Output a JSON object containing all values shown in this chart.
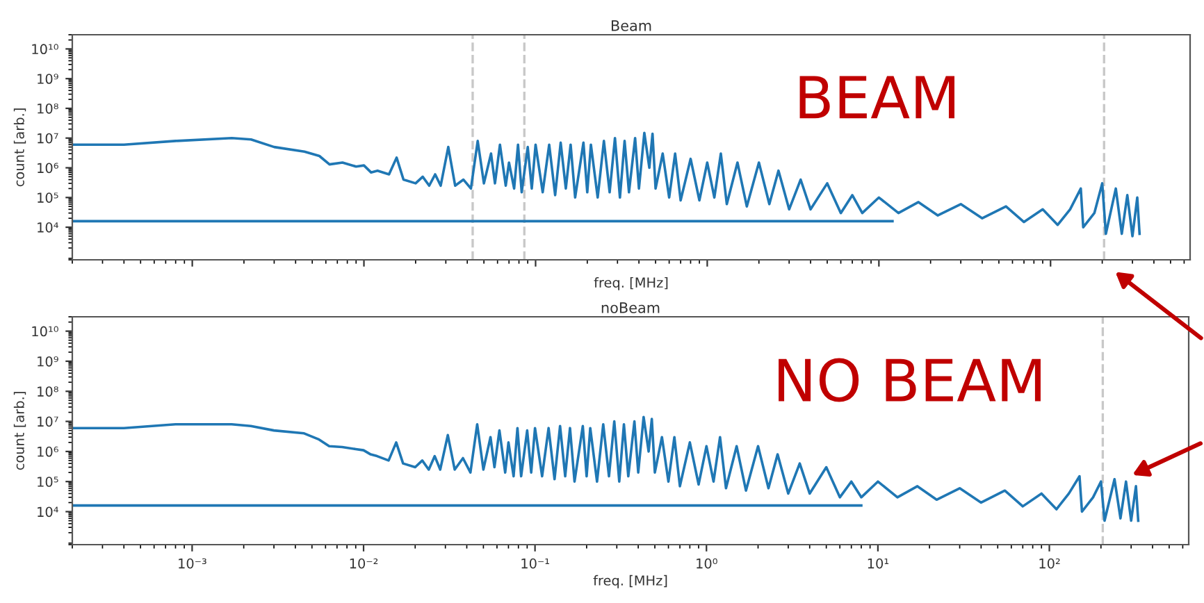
{
  "chart_data": [
    {
      "type": "line",
      "title": "Beam",
      "xlabel": "freq. [MHz]",
      "ylabel": "count [arb.]",
      "log": "xy",
      "tick_labels": "y",
      "annotations": [
        "BEAM"
      ],
      "xlim": [
        0.0002,
        650
      ],
      "ylim": [
        800,
        30000000000
      ],
      "xticks": [
        {
          "value": 0.001,
          "label": null
        },
        {
          "value": 0.01,
          "label": null
        },
        {
          "value": 0.1,
          "label": null
        },
        {
          "value": 1,
          "label": null
        },
        {
          "value": 10,
          "label": null
        },
        {
          "value": 100,
          "label": null
        }
      ],
      "yticks": [
        {
          "value": 10000,
          "label": "10⁴"
        },
        {
          "value": 100000,
          "label": "10⁵"
        },
        {
          "value": 1000000,
          "label": "10⁶"
        },
        {
          "value": 10000000,
          "label": "10⁷"
        },
        {
          "value": 100000000,
          "label": "10⁸"
        },
        {
          "value": 1000000000,
          "label": "10⁹"
        },
        {
          "value": 10000000000,
          "label": "10¹⁰"
        }
      ],
      "ref_lines": [
        {
          "axis": "x",
          "value": 0.043,
          "color": "#c8c8c8",
          "line_style": "dashed"
        },
        {
          "axis": "x",
          "value": 0.086,
          "color": "#c8c8c8",
          "line_style": "dashed"
        },
        {
          "axis": "x",
          "value": 205,
          "color": "#c8c8c8",
          "line_style": "dashed"
        }
      ],
      "series": [
        {
          "color": "#1f77b4",
          "x": [
            0.0002,
            12
          ],
          "values": [
            16000,
            16000
          ]
        },
        {
          "color": "#1f77b4",
          "x": [
            0.0002,
            0.0004,
            0.0008,
            0.0017,
            0.0022,
            0.003,
            0.0045,
            0.0055,
            0.0063,
            0.0075,
            0.009,
            0.01,
            0.011,
            0.012,
            0.014,
            0.0155,
            0.017,
            0.02,
            0.022,
            0.024,
            0.026,
            0.028,
            0.031,
            0.034,
            0.038,
            0.042,
            0.046,
            0.05,
            0.055,
            0.058,
            0.062,
            0.067,
            0.07,
            0.075,
            0.079,
            0.083,
            0.09,
            0.095,
            0.1,
            0.11,
            0.12,
            0.13,
            0.14,
            0.15,
            0.16,
            0.17,
            0.19,
            0.2,
            0.21,
            0.23,
            0.25,
            0.27,
            0.29,
            0.31,
            0.33,
            0.35,
            0.38,
            0.4,
            0.43,
            0.46,
            0.48,
            0.5,
            0.55,
            0.6,
            0.65,
            0.7,
            0.8,
            0.9,
            1.0,
            1.1,
            1.2,
            1.3,
            1.5,
            1.7,
            2.0,
            2.3,
            2.6,
            3.0,
            3.5,
            4.0,
            5.0,
            6.0,
            7.0,
            8.0,
            10,
            13,
            17,
            22,
            30,
            40,
            55,
            70,
            90,
            110,
            130,
            150,
            155,
            180,
            200,
            210,
            240,
            260,
            280,
            300,
            320,
            330
          ],
          "values": [
            6000000,
            6000000,
            8000000,
            10000000,
            9000000,
            5000000,
            3500000,
            2500000,
            1300000,
            1500000,
            1100000,
            1200000,
            700000,
            800000,
            600000,
            2200000,
            400000,
            300000,
            500000,
            250000,
            600000,
            250000,
            5000000,
            250000,
            400000,
            200000,
            8000000,
            300000,
            3000000,
            300000,
            6000000,
            250000,
            1500000,
            200000,
            6000000,
            150000,
            5000000,
            200000,
            6000000,
            150000,
            6000000,
            120000,
            7000000,
            200000,
            6000000,
            100000,
            7000000,
            150000,
            6000000,
            100000,
            8000000,
            150000,
            10000000,
            100000,
            8000000,
            150000,
            10000000,
            200000,
            15000000,
            1000000,
            14000000,
            200000,
            3000000,
            100000,
            3000000,
            80000,
            2000000,
            80000,
            1500000,
            100000,
            3000000,
            60000,
            1500000,
            50000,
            1500000,
            60000,
            800000,
            40000,
            400000,
            40000,
            300000,
            30000,
            120000,
            30000,
            100000,
            30000,
            70000,
            25000,
            60000,
            20000,
            50000,
            15000,
            40000,
            12000,
            40000,
            200000,
            10000,
            30000,
            300000,
            6000,
            200000,
            6000,
            120000,
            5000,
            100000,
            6000
          ]
        }
      ]
    },
    {
      "type": "line",
      "title": "noBeam",
      "xlabel": "freq. [MHz]",
      "ylabel": "count [arb.]",
      "log": "xy",
      "annotations": [
        "NO BEAM"
      ],
      "xlim": [
        0.0002,
        650
      ],
      "ylim": [
        800,
        30000000000
      ],
      "xticks": [
        {
          "value": 0.001,
          "label": "10⁻³"
        },
        {
          "value": 0.01,
          "label": "10⁻²"
        },
        {
          "value": 0.1,
          "label": "10⁻¹"
        },
        {
          "value": 1,
          "label": "10⁰"
        },
        {
          "value": 10,
          "label": "10¹"
        },
        {
          "value": 100,
          "label": "10²"
        }
      ],
      "yticks": [
        {
          "value": 10000,
          "label": "10⁴"
        },
        {
          "value": 100000,
          "label": "10⁵"
        },
        {
          "value": 1000000,
          "label": "10⁶"
        },
        {
          "value": 10000000,
          "label": "10⁷"
        },
        {
          "value": 100000000,
          "label": "10⁸"
        },
        {
          "value": 1000000000,
          "label": "10⁹"
        },
        {
          "value": 10000000000,
          "label": "10¹⁰"
        }
      ],
      "ref_lines": [
        {
          "axis": "x",
          "value": 205,
          "color": "#c8c8c8",
          "line_style": "dashed"
        }
      ],
      "series": [
        {
          "color": "#1f77b4",
          "x": [
            0.0002,
            8
          ],
          "values": [
            16000,
            16000
          ]
        },
        {
          "color": "#1f77b4",
          "x": [
            0.0002,
            0.0004,
            0.0008,
            0.0017,
            0.0022,
            0.003,
            0.0045,
            0.0055,
            0.0063,
            0.0075,
            0.009,
            0.01,
            0.011,
            0.012,
            0.014,
            0.0155,
            0.017,
            0.02,
            0.022,
            0.024,
            0.026,
            0.028,
            0.031,
            0.034,
            0.038,
            0.042,
            0.046,
            0.05,
            0.055,
            0.058,
            0.062,
            0.067,
            0.07,
            0.075,
            0.079,
            0.083,
            0.09,
            0.095,
            0.1,
            0.11,
            0.12,
            0.13,
            0.14,
            0.15,
            0.16,
            0.17,
            0.19,
            0.2,
            0.21,
            0.23,
            0.25,
            0.27,
            0.29,
            0.31,
            0.33,
            0.35,
            0.38,
            0.4,
            0.43,
            0.46,
            0.48,
            0.5,
            0.55,
            0.6,
            0.65,
            0.7,
            0.8,
            0.9,
            1.0,
            1.1,
            1.2,
            1.3,
            1.5,
            1.7,
            2.0,
            2.3,
            2.6,
            3.0,
            3.5,
            4.0,
            5.0,
            6.0,
            7.0,
            8.0,
            10,
            13,
            17,
            22,
            30,
            40,
            55,
            70,
            90,
            110,
            130,
            150,
            155,
            180,
            200,
            210,
            240,
            260,
            280,
            300,
            320,
            330
          ],
          "values": [
            6000000,
            6000000,
            8000000,
            8000000,
            7000000,
            5000000,
            4000000,
            2500000,
            1500000,
            1400000,
            1200000,
            1100000,
            800000,
            700000,
            500000,
            2000000,
            400000,
            300000,
            500000,
            250000,
            700000,
            250000,
            3500000,
            250000,
            600000,
            200000,
            8000000,
            250000,
            3000000,
            300000,
            5000000,
            200000,
            2000000,
            150000,
            6000000,
            150000,
            5000000,
            200000,
            6000000,
            150000,
            6000000,
            120000,
            7000000,
            150000,
            6000000,
            100000,
            7000000,
            150000,
            6000000,
            100000,
            8000000,
            150000,
            10000000,
            100000,
            8000000,
            150000,
            10000000,
            200000,
            14000000,
            1000000,
            12000000,
            200000,
            3000000,
            100000,
            3000000,
            70000,
            2000000,
            80000,
            1500000,
            100000,
            3000000,
            60000,
            1500000,
            50000,
            1500000,
            60000,
            800000,
            40000,
            400000,
            40000,
            300000,
            30000,
            100000,
            30000,
            100000,
            30000,
            70000,
            25000,
            60000,
            20000,
            50000,
            15000,
            40000,
            12000,
            40000,
            150000,
            10000,
            30000,
            100000,
            5000,
            120000,
            6000,
            100000,
            5000,
            70000,
            5000
          ]
        }
      ]
    }
  ]
}
